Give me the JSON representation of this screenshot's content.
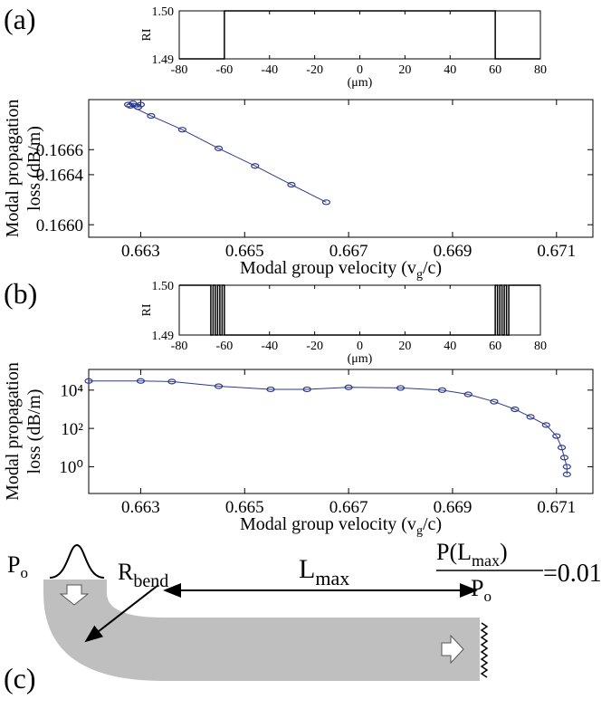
{
  "chart_data": [
    {
      "type": "line",
      "panel": "(a)",
      "x": [
        -80,
        -60,
        -60,
        60,
        60,
        80
      ],
      "values": [
        1.49,
        1.49,
        1.5,
        1.5,
        1.49,
        1.49
      ],
      "color": "#000000",
      "xlim": [
        -80,
        80
      ],
      "xticks": [
        -80,
        -60,
        -40,
        -20,
        0,
        20,
        40,
        60,
        80
      ],
      "xlabel": [
        "(μm)"
      ],
      "ylim": [
        1.49,
        1.5
      ],
      "yticks": [
        1.49,
        {
          "value": 1.5,
          "label": "1.50"
        }
      ],
      "ylabel": [
        "RI"
      ]
    },
    {
      "type": "line",
      "markers": true,
      "x": [
        0.66276,
        0.66285,
        0.663,
        0.66295,
        0.6628,
        0.6632,
        0.6638,
        0.6645,
        0.6652,
        0.6659,
        0.66657
      ],
      "values": [
        0.16696,
        0.16697,
        0.16696,
        0.16694,
        0.16695,
        0.16687,
        0.16676,
        0.16661,
        0.16647,
        0.16632,
        0.16618
      ],
      "color": "#2b3990",
      "xlim": [
        0.662,
        0.6717
      ],
      "xticks": [
        0.663,
        0.665,
        0.667,
        0.669,
        0.671
      ],
      "xlabel": [
        "Modal group velocity (v",
        "g",
        "/c)"
      ],
      "ylim": [
        0.1659,
        0.167
      ],
      "yticks": [
        {
          "value": 0.166,
          "label": "0.1660"
        },
        0.1664,
        0.1666
      ],
      "ylabel": [
        "Modal propagation",
        "loss (dB/m)"
      ]
    },
    {
      "type": "line",
      "panel": "(b)",
      "x": [
        -80,
        -66,
        -66,
        -65,
        -65,
        -64,
        -64,
        -63,
        -63,
        -62,
        -62,
        -61,
        -61,
        -60,
        -60,
        60,
        60,
        61,
        61,
        62,
        62,
        63,
        63,
        64,
        64,
        65,
        65,
        66,
        66,
        80
      ],
      "values": [
        1.5,
        1.5,
        1.49,
        1.49,
        1.5,
        1.5,
        1.49,
        1.49,
        1.5,
        1.5,
        1.49,
        1.49,
        1.5,
        1.5,
        1.49,
        1.49,
        1.5,
        1.5,
        1.49,
        1.49,
        1.5,
        1.5,
        1.49,
        1.49,
        1.5,
        1.5,
        1.49,
        1.49,
        1.5,
        1.5
      ],
      "color": "#000000",
      "xlim": [
        -80,
        80
      ],
      "xticks": [
        -80,
        -60,
        -40,
        -20,
        0,
        20,
        40,
        60,
        80
      ],
      "xlabel": [
        "(μm)"
      ],
      "ylim": [
        1.49,
        1.5
      ],
      "yticks": [
        1.49,
        {
          "value": 1.5,
          "label": "1.50"
        }
      ],
      "ylabel": [
        "RI"
      ]
    },
    {
      "type": "line",
      "markers": true,
      "log_scale": true,
      "x": [
        0.662,
        0.663,
        0.6636,
        0.6645,
        0.6655,
        0.6662,
        0.667,
        0.668,
        0.6688,
        0.6693,
        0.6698,
        0.6702,
        0.6705,
        0.6708,
        0.671,
        0.6711,
        0.67115,
        0.6712,
        0.6712
      ],
      "values": [
        30000,
        30000,
        28000,
        16000,
        11000,
        11000,
        14000,
        13000,
        10000,
        6000,
        2500,
        1000,
        400,
        150,
        40,
        10,
        3,
        1,
        0.4
      ],
      "color": "#2b3990",
      "xlim": [
        0.662,
        0.6717
      ],
      "xticks": [
        0.663,
        0.665,
        0.667,
        0.669,
        0.671
      ],
      "xlabel": [
        "Modal group velocity (v",
        "g",
        "/c)"
      ],
      "ylim": [
        0.04,
        120000
      ],
      "yticks": [
        {
          "value": 1,
          "label": "10⁰"
        },
        {
          "value": 100,
          "label": "10²"
        },
        {
          "value": 10000,
          "label": "10⁴"
        }
      ],
      "ylabel": [
        "Modal propagation",
        "loss (dB/m)"
      ]
    }
  ],
  "diagram": {
    "panel": "(c)",
    "power_in": [
      "P",
      "o"
    ],
    "bend": [
      "R",
      "bend"
    ],
    "length": [
      "L",
      "max"
    ],
    "ratio_top": [
      "P(L",
      "max",
      ")"
    ],
    "ratio_bottom": [
      "P",
      "o"
    ],
    "ratio_value": "=0.01"
  }
}
